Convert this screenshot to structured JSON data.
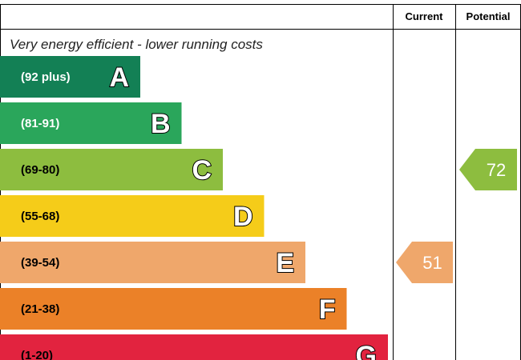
{
  "chart_data": {
    "type": "bar",
    "subtitle": "Very energy efficient - lower running costs",
    "columns": {
      "current": "Current",
      "potential": "Potential"
    },
    "bands": [
      {
        "letter": "A",
        "range": "(92 plus)",
        "color": "#138055",
        "text_color": "#ffffff"
      },
      {
        "letter": "B",
        "range": "(81-91)",
        "color": "#2aa65b",
        "text_color": "#ffffff"
      },
      {
        "letter": "C",
        "range": "(69-80)",
        "color": "#8dbd3f",
        "text_color": "#000000"
      },
      {
        "letter": "D",
        "range": "(55-68)",
        "color": "#f5cc19",
        "text_color": "#000000"
      },
      {
        "letter": "E",
        "range": "(39-54)",
        "color": "#efa76b",
        "text_color": "#000000"
      },
      {
        "letter": "F",
        "range": "(21-38)",
        "color": "#eb8128",
        "text_color": "#000000"
      },
      {
        "letter": "G",
        "range": "(1-20)",
        "color": "#e2233f",
        "text_color": "#000000"
      }
    ],
    "current": {
      "value": 51,
      "band": "E",
      "color": "#efa76b"
    },
    "potential": {
      "value": 72,
      "band": "C",
      "color": "#8dbd3f"
    }
  }
}
